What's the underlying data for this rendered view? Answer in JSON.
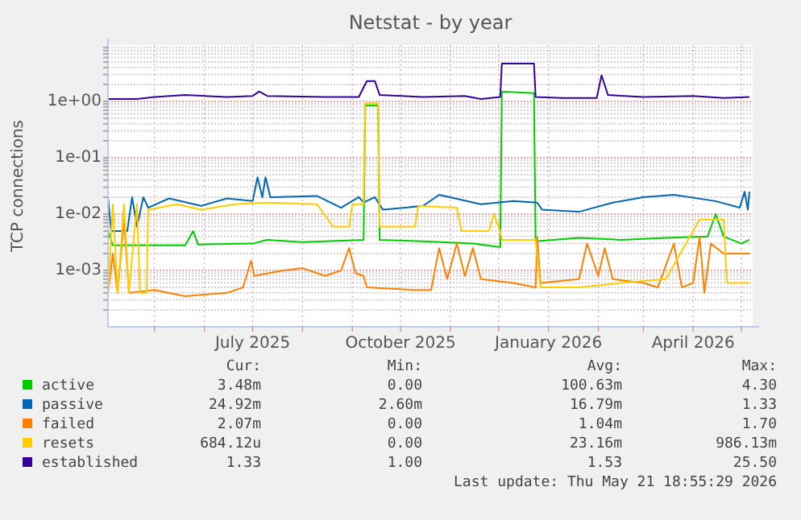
{
  "chart_data": {
    "type": "line",
    "title": "Netstat - by year",
    "ylabel": "TCP connections",
    "log": true,
    "grid": true,
    "legend": "bottom",
    "line_style": "solid",
    "xlim": [
      "2025-04-02",
      "2026-05-08"
    ],
    "xticks": [
      {
        "value": "2025-05-01",
        "label": null
      },
      {
        "value": "2025-06-01",
        "label": null
      },
      {
        "value": "2025-07-01",
        "label": "July 2025"
      },
      {
        "value": "2025-08-01",
        "label": null
      },
      {
        "value": "2025-09-01",
        "label": null
      },
      {
        "value": "2025-10-01",
        "label": "October 2025"
      },
      {
        "value": "2025-11-01",
        "label": null
      },
      {
        "value": "2025-12-01",
        "label": null
      },
      {
        "value": "2026-01-01",
        "label": "January 2026"
      },
      {
        "value": "2026-02-01",
        "label": null
      },
      {
        "value": "2026-03-01",
        "label": null
      },
      {
        "value": "2026-04-01",
        "label": "April 2026"
      },
      {
        "value": "2026-05-01",
        "label": null
      }
    ],
    "ylim": [
      0.0001,
      10
    ],
    "yticks": [
      {
        "value": 0.0002,
        "label": null
      },
      {
        "value": 0.0003,
        "label": null
      },
      {
        "value": 0.0004,
        "label": null
      },
      {
        "value": 0.0005,
        "label": null
      },
      {
        "value": 0.0006,
        "label": null
      },
      {
        "value": 0.0007,
        "label": null
      },
      {
        "value": 0.0008,
        "label": null
      },
      {
        "value": 0.0009,
        "label": null
      },
      {
        "value": 0.001,
        "label": "1e-03"
      },
      {
        "value": 0.002,
        "label": null
      },
      {
        "value": 0.003,
        "label": null
      },
      {
        "value": 0.004,
        "label": null
      },
      {
        "value": 0.005,
        "label": null
      },
      {
        "value": 0.006,
        "label": null
      },
      {
        "value": 0.007,
        "label": null
      },
      {
        "value": 0.008,
        "label": null
      },
      {
        "value": 0.009,
        "label": null
      },
      {
        "value": 0.01,
        "label": "1e-02"
      },
      {
        "value": 0.02,
        "label": null
      },
      {
        "value": 0.03,
        "label": null
      },
      {
        "value": 0.04,
        "label": null
      },
      {
        "value": 0.05,
        "label": null
      },
      {
        "value": 0.06,
        "label": null
      },
      {
        "value": 0.07,
        "label": null
      },
      {
        "value": 0.08,
        "label": null
      },
      {
        "value": 0.09,
        "label": null
      },
      {
        "value": 0.1,
        "label": "1e-01"
      },
      {
        "value": 0.2,
        "label": null
      },
      {
        "value": 0.3,
        "label": null
      },
      {
        "value": 0.4,
        "label": null
      },
      {
        "value": 0.5,
        "label": null
      },
      {
        "value": 0.6,
        "label": null
      },
      {
        "value": 0.7,
        "label": null
      },
      {
        "value": 0.8,
        "label": null
      },
      {
        "value": 0.9,
        "label": null
      },
      {
        "value": 1,
        "label": "1e+00"
      },
      {
        "value": 2,
        "label": null
      },
      {
        "value": 3,
        "label": null
      },
      {
        "value": 4,
        "label": null
      },
      {
        "value": 5,
        "label": null
      },
      {
        "value": 6,
        "label": null
      },
      {
        "value": 7,
        "label": null
      },
      {
        "value": 8,
        "label": null
      },
      {
        "value": 9,
        "label": null
      }
    ],
    "annotations": [
      "Cur:",
      "Min:",
      "Avg:",
      "Max:",
      "3.48m",
      "0.00",
      "100.63m",
      "4.30",
      "24.92m",
      "2.60m",
      "16.79m",
      "1.33",
      "2.07m",
      "0.00",
      "1.04m",
      "1.70",
      "684.12u",
      "0.00",
      "23.16m",
      "986.13m",
      "1.33",
      "1.00",
      "1.53",
      "25.50",
      "Last update: Thu May 21 18:55:29 2026"
    ],
    "series": [
      {
        "name": "active",
        "color": "#00cc00",
        "x": [
          "2025-04-02",
          "2025-04-05",
          "2025-05-01",
          "2025-05-20",
          "2025-05-25",
          "2025-05-28",
          "2025-07-01",
          "2025-07-10",
          "2025-08-01",
          "2025-09-08",
          "2025-09-09",
          "2025-09-17",
          "2025-09-18",
          "2025-10-15",
          "2025-11-15",
          "2025-12-02",
          "2025-12-03",
          "2025-12-23",
          "2025-12-24",
          "2026-01-20",
          "2026-02-15",
          "2026-03-15",
          "2026-04-10",
          "2026-04-15",
          "2026-04-20",
          "2026-05-01",
          "2026-05-06"
        ],
        "values": [
          0.005,
          0.0028,
          0.0028,
          0.0028,
          0.005,
          0.0029,
          0.003,
          0.0035,
          0.0032,
          0.0035,
          0.85,
          0.85,
          0.0035,
          0.0033,
          0.003,
          0.0026,
          1.5,
          1.4,
          0.0033,
          0.0038,
          0.0035,
          0.0038,
          0.004,
          0.01,
          0.004,
          0.003,
          0.0035
        ]
      },
      {
        "name": "passive",
        "color": "#0066b3",
        "x": [
          "2025-04-02",
          "2025-04-04",
          "2025-04-14",
          "2025-04-17",
          "2025-04-20",
          "2025-04-24",
          "2025-04-27",
          "2025-05-10",
          "2025-05-30",
          "2025-06-15",
          "2025-07-01",
          "2025-07-04",
          "2025-07-07",
          "2025-07-09",
          "2025-07-12",
          "2025-08-10",
          "2025-08-25",
          "2025-09-05",
          "2025-09-08",
          "2025-09-15",
          "2025-09-20",
          "2025-10-15",
          "2025-10-25",
          "2025-11-20",
          "2025-12-10",
          "2025-12-25",
          "2025-12-28",
          "2026-01-20",
          "2026-02-10",
          "2026-03-01",
          "2026-03-20",
          "2026-04-15",
          "2026-04-30",
          "2026-05-03",
          "2026-05-05",
          "2026-05-06"
        ],
        "values": [
          0.02,
          0.005,
          0.005,
          0.02,
          0.006,
          0.02,
          0.013,
          0.019,
          0.014,
          0.019,
          0.017,
          0.045,
          0.02,
          0.045,
          0.02,
          0.021,
          0.013,
          0.02,
          0.016,
          0.02,
          0.012,
          0.014,
          0.022,
          0.015,
          0.017,
          0.016,
          0.012,
          0.011,
          0.016,
          0.02,
          0.022,
          0.017,
          0.013,
          0.025,
          0.012,
          0.025
        ]
      },
      {
        "name": "failed",
        "color": "#ff8000",
        "x": [
          "2025-04-02",
          "2025-04-05",
          "2025-04-08",
          "2025-04-12",
          "2025-04-15",
          "2025-05-01",
          "2025-05-20",
          "2025-06-15",
          "2025-06-25",
          "2025-06-30",
          "2025-07-02",
          "2025-07-20",
          "2025-08-01",
          "2025-08-15",
          "2025-08-25",
          "2025-08-30",
          "2025-09-03",
          "2025-09-08",
          "2025-09-10",
          "2025-10-10",
          "2025-10-20",
          "2025-10-25",
          "2025-10-30",
          "2025-11-05",
          "2025-11-10",
          "2025-11-15",
          "2025-11-20",
          "2025-12-10",
          "2025-12-24",
          "2025-12-25",
          "2025-12-27",
          "2026-01-20",
          "2026-01-25",
          "2026-02-01",
          "2026-02-05",
          "2026-02-10",
          "2026-03-01",
          "2026-03-10",
          "2026-03-20",
          "2026-03-25",
          "2026-04-01",
          "2026-04-05",
          "2026-04-08",
          "2026-04-12",
          "2026-04-20",
          "2026-05-06"
        ],
        "values": [
          0.0004,
          0.002,
          0.0004,
          0.008,
          0.0004,
          0.00045,
          0.00035,
          0.0004,
          0.0005,
          0.0015,
          0.0008,
          0.001,
          0.0011,
          0.0008,
          0.001,
          0.0025,
          0.0009,
          0.0008,
          0.0005,
          0.00045,
          0.00045,
          0.0025,
          0.0007,
          0.003,
          0.0008,
          0.0025,
          0.0007,
          0.0006,
          0.0005,
          0.004,
          0.0006,
          0.0007,
          0.003,
          0.0008,
          0.0025,
          0.0007,
          0.0006,
          0.0005,
          0.003,
          0.0005,
          0.0006,
          0.004,
          0.0004,
          0.003,
          0.002,
          0.002
        ]
      },
      {
        "name": "resets",
        "color": "#ffcc00",
        "x": [
          "2025-04-02",
          "2025-04-05",
          "2025-04-08",
          "2025-04-12",
          "2025-04-15",
          "2025-04-20",
          "2025-04-22",
          "2025-04-26",
          "2025-04-27",
          "2025-05-15",
          "2025-05-30",
          "2025-06-20",
          "2025-07-10",
          "2025-08-10",
          "2025-08-20",
          "2025-08-30",
          "2025-09-01",
          "2025-09-08",
          "2025-09-09",
          "2025-09-17",
          "2025-09-18",
          "2025-10-10",
          "2025-10-12",
          "2025-11-05",
          "2025-11-08",
          "2025-11-25",
          "2025-11-28",
          "2025-12-02",
          "2025-12-03",
          "2025-12-24",
          "2025-12-27",
          "2026-01-20",
          "2026-02-15",
          "2026-03-15",
          "2026-04-05",
          "2026-04-20",
          "2026-04-22",
          "2026-05-06"
        ],
        "values": [
          0.0004,
          0.015,
          0.0004,
          0.015,
          0.0004,
          0.015,
          0.0004,
          0.0004,
          0.012,
          0.015,
          0.012,
          0.015,
          0.016,
          0.015,
          0.006,
          0.006,
          0.015,
          0.015,
          0.93,
          0.93,
          0.006,
          0.006,
          0.014,
          0.013,
          0.005,
          0.005,
          0.01,
          0.005,
          0.0035,
          0.0035,
          0.0005,
          0.0005,
          0.0006,
          0.0007,
          0.008,
          0.008,
          0.0006,
          0.0006
        ]
      },
      {
        "name": "established",
        "color": "#330099",
        "x": [
          "2025-04-02",
          "2025-04-20",
          "2025-05-01",
          "2025-05-20",
          "2025-06-15",
          "2025-07-01",
          "2025-07-05",
          "2025-07-10",
          "2025-08-15",
          "2025-09-05",
          "2025-09-10",
          "2025-09-15",
          "2025-09-18",
          "2025-10-15",
          "2025-11-10",
          "2025-11-20",
          "2025-12-02",
          "2025-12-03",
          "2025-12-23",
          "2025-12-24",
          "2026-01-10",
          "2026-01-31",
          "2026-02-03",
          "2026-02-07",
          "2026-03-01",
          "2026-04-01",
          "2026-04-20",
          "2026-05-06"
        ],
        "values": [
          1.1,
          1.1,
          1.2,
          1.3,
          1.2,
          1.25,
          1.5,
          1.25,
          1.2,
          1.2,
          2.3,
          2.3,
          1.3,
          1.2,
          1.25,
          1.1,
          1.2,
          4.7,
          4.7,
          1.2,
          1.15,
          1.15,
          2.9,
          1.3,
          1.2,
          1.25,
          1.15,
          1.2
        ]
      }
    ]
  }
}
